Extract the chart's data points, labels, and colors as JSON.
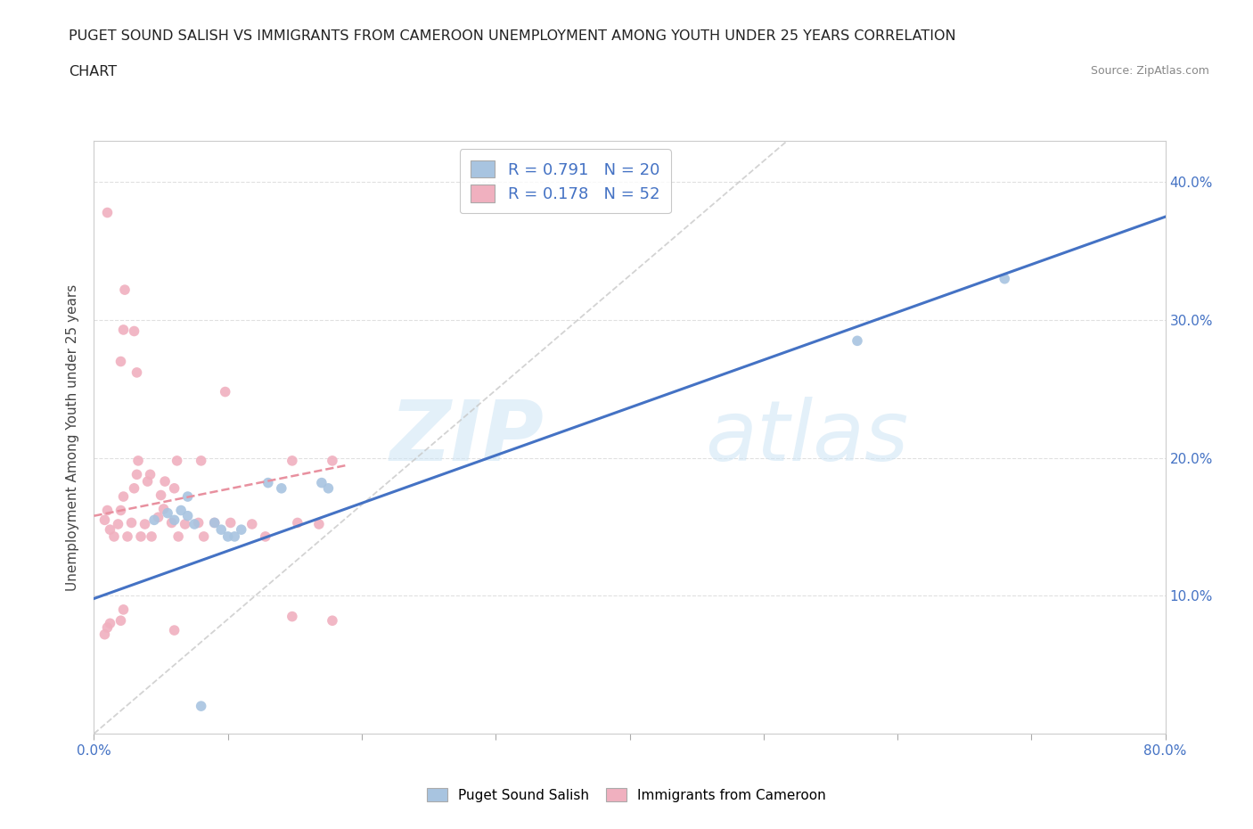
{
  "title_line1": "PUGET SOUND SALISH VS IMMIGRANTS FROM CAMEROON UNEMPLOYMENT AMONG YOUTH UNDER 25 YEARS CORRELATION",
  "title_line2": "CHART",
  "source_text": "Source: ZipAtlas.com",
  "ylabel": "Unemployment Among Youth under 25 years",
  "xlim": [
    0.0,
    0.8
  ],
  "ylim": [
    0.0,
    0.43
  ],
  "xticks": [
    0.0,
    0.1,
    0.2,
    0.3,
    0.4,
    0.5,
    0.6,
    0.7,
    0.8
  ],
  "xticklabels": [
    "0.0%",
    "",
    "",
    "",
    "",
    "",
    "",
    "",
    "80.0%"
  ],
  "ytick_positions": [
    0.1,
    0.2,
    0.3,
    0.4
  ],
  "ytick_labels": [
    "10.0%",
    "20.0%",
    "30.0%",
    "40.0%"
  ],
  "watermark_zip": "ZIP",
  "watermark_atlas": "atlas",
  "color_blue": "#a8c4e0",
  "color_pink": "#f0b0bf",
  "trend_blue": "#4472c4",
  "trend_pink": "#e8909f",
  "trend_gray": "#c8c8c8",
  "blue_scatter": [
    [
      0.045,
      0.155
    ],
    [
      0.055,
      0.16
    ],
    [
      0.06,
      0.155
    ],
    [
      0.065,
      0.162
    ],
    [
      0.07,
      0.158
    ],
    [
      0.07,
      0.172
    ],
    [
      0.075,
      0.152
    ],
    [
      0.09,
      0.153
    ],
    [
      0.095,
      0.148
    ],
    [
      0.1,
      0.143
    ],
    [
      0.105,
      0.143
    ],
    [
      0.11,
      0.148
    ],
    [
      0.13,
      0.182
    ],
    [
      0.14,
      0.178
    ],
    [
      0.17,
      0.182
    ],
    [
      0.175,
      0.178
    ],
    [
      0.57,
      0.285
    ],
    [
      0.68,
      0.33
    ],
    [
      0.08,
      0.02
    ]
  ],
  "pink_scatter": [
    [
      0.008,
      0.155
    ],
    [
      0.01,
      0.162
    ],
    [
      0.012,
      0.148
    ],
    [
      0.015,
      0.143
    ],
    [
      0.018,
      0.152
    ],
    [
      0.02,
      0.162
    ],
    [
      0.022,
      0.172
    ],
    [
      0.025,
      0.143
    ],
    [
      0.028,
      0.153
    ],
    [
      0.03,
      0.178
    ],
    [
      0.032,
      0.188
    ],
    [
      0.033,
      0.198
    ],
    [
      0.035,
      0.143
    ],
    [
      0.038,
      0.152
    ],
    [
      0.04,
      0.183
    ],
    [
      0.042,
      0.188
    ],
    [
      0.043,
      0.143
    ],
    [
      0.048,
      0.157
    ],
    [
      0.05,
      0.173
    ],
    [
      0.052,
      0.163
    ],
    [
      0.053,
      0.183
    ],
    [
      0.058,
      0.153
    ],
    [
      0.06,
      0.178
    ],
    [
      0.062,
      0.198
    ],
    [
      0.063,
      0.143
    ],
    [
      0.068,
      0.152
    ],
    [
      0.078,
      0.153
    ],
    [
      0.08,
      0.198
    ],
    [
      0.082,
      0.143
    ],
    [
      0.09,
      0.153
    ],
    [
      0.098,
      0.248
    ],
    [
      0.102,
      0.153
    ],
    [
      0.118,
      0.152
    ],
    [
      0.128,
      0.143
    ],
    [
      0.148,
      0.198
    ],
    [
      0.152,
      0.153
    ],
    [
      0.168,
      0.152
    ],
    [
      0.178,
      0.198
    ],
    [
      0.02,
      0.27
    ],
    [
      0.022,
      0.293
    ],
    [
      0.023,
      0.322
    ],
    [
      0.03,
      0.292
    ],
    [
      0.032,
      0.262
    ],
    [
      0.008,
      0.072
    ],
    [
      0.01,
      0.077
    ],
    [
      0.012,
      0.08
    ],
    [
      0.02,
      0.082
    ],
    [
      0.022,
      0.09
    ],
    [
      0.06,
      0.075
    ],
    [
      0.148,
      0.085
    ],
    [
      0.178,
      0.082
    ],
    [
      0.01,
      0.378
    ]
  ],
  "blue_trend_x": [
    0.0,
    0.8
  ],
  "blue_trend_y": [
    0.098,
    0.375
  ],
  "pink_trend_x": [
    0.0,
    0.19
  ],
  "pink_trend_y": [
    0.158,
    0.195
  ],
  "gray_trend_x": [
    0.0,
    0.52
  ],
  "gray_trend_y": [
    0.0,
    0.432
  ]
}
